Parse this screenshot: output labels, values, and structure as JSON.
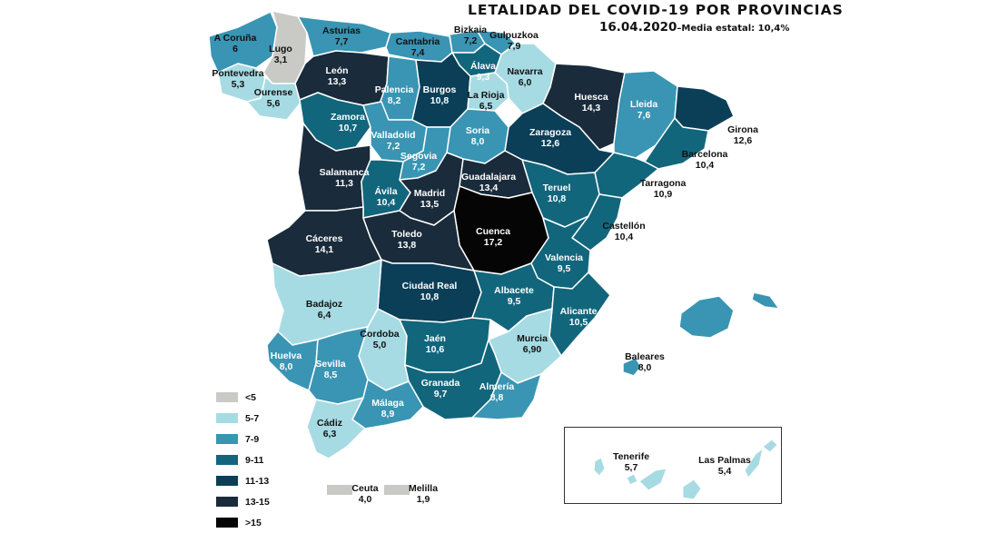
{
  "header": {
    "title": "LETALIDAD DEL COVID-19 POR PROVINCIAS",
    "date": "16.04.2020",
    "average": "–Media estatal: 10,4%"
  },
  "colors": {
    "lt5": "#c9c9c6",
    "c5_7": "#a7dbe3",
    "c7_9": "#3995b3",
    "c9_11": "#12667c",
    "c11_13": "#0b3f58",
    "c13_15": "#1a2b3b",
    "gt15": "#050505"
  },
  "legend": [
    {
      "label": "<5",
      "color": "#c9c9c6"
    },
    {
      "label": "5-7",
      "color": "#a7dbe3"
    },
    {
      "label": "7-9",
      "color": "#3995b3"
    },
    {
      "label": "9-11",
      "color": "#12667c"
    },
    {
      "label": "11-13",
      "color": "#0b3f58"
    },
    {
      "label": "13-15",
      "color": "#1a2b3b"
    },
    {
      "label": ">15",
      "color": "#050505"
    }
  ],
  "provinces": {
    "a_coruna": {
      "name": "A Coruña",
      "value": "6"
    },
    "lugo": {
      "name": "Lugo",
      "value": "3,1"
    },
    "pontevedra": {
      "name": "Pontevedra",
      "value": "5,3"
    },
    "ourense": {
      "name": "Ourense",
      "value": "5,6"
    },
    "asturias": {
      "name": "Asturias",
      "value": "7,7"
    },
    "cantabria": {
      "name": "Cantabria",
      "value": "7,4"
    },
    "bizkaia": {
      "name": "Bizkaia",
      "value": "7,2"
    },
    "gipuzkoa": {
      "name": "Gulpuzkoa",
      "value": "7,9"
    },
    "alava": {
      "name": "Álava",
      "value": "9,3"
    },
    "navarra": {
      "name": "Navarra",
      "value": "6,0"
    },
    "leon": {
      "name": "León",
      "value": "13,3"
    },
    "palencia": {
      "name": "Palencia",
      "value": "8,2"
    },
    "burgos": {
      "name": "Burgos",
      "value": "10,8"
    },
    "la_rioja": {
      "name": "La Rioja",
      "value": "6,5"
    },
    "huesca": {
      "name": "Huesca",
      "value": "14,3"
    },
    "lleida": {
      "name": "Lleida",
      "value": "7,6"
    },
    "girona": {
      "name": "Girona",
      "value": "12,6"
    },
    "barcelona": {
      "name": "Barcelona",
      "value": "10,4"
    },
    "tarragona": {
      "name": "Tarragona",
      "value": "10,9"
    },
    "zamora": {
      "name": "Zamora",
      "value": "10,7"
    },
    "valladolid": {
      "name": "Valladolid",
      "value": "7,2"
    },
    "soria": {
      "name": "Soria",
      "value": "8,0"
    },
    "zaragoza": {
      "name": "Zaragoza",
      "value": "12,6"
    },
    "segovia": {
      "name": "Segovia",
      "value": "7,2"
    },
    "salamanca": {
      "name": "Salamanca",
      "value": "11,3"
    },
    "avila": {
      "name": "Ávila",
      "value": "10,4"
    },
    "madrid": {
      "name": "Madrid",
      "value": "13,5"
    },
    "guadalajara": {
      "name": "Guadalajara",
      "value": "13,4"
    },
    "teruel": {
      "name": "Teruel",
      "value": "10,8"
    },
    "castellon": {
      "name": "Castellón",
      "value": "10,4"
    },
    "caceres": {
      "name": "Cáceres",
      "value": "14,1"
    },
    "toledo": {
      "name": "Toledo",
      "value": "13,8"
    },
    "cuenca": {
      "name": "Cuenca",
      "value": "17,2"
    },
    "valencia": {
      "name": "Valencia",
      "value": "9,5"
    },
    "badajoz": {
      "name": "Badajoz",
      "value": "6,4"
    },
    "ciudad_real": {
      "name": "Ciudad Real",
      "value": "10,8"
    },
    "albacete": {
      "name": "Albacete",
      "value": "9,5"
    },
    "alicante": {
      "name": "Alicante",
      "value": "10,5"
    },
    "cordoba": {
      "name": "Cordoba",
      "value": "5,0"
    },
    "jaen": {
      "name": "Jaén",
      "value": "10,6"
    },
    "murcia": {
      "name": "Murcia",
      "value": "6,90"
    },
    "huelva": {
      "name": "Huelva",
      "value": "8,0"
    },
    "sevilla": {
      "name": "Sevilla",
      "value": "8,5"
    },
    "granada": {
      "name": "Granada",
      "value": "9,7"
    },
    "almeria": {
      "name": "Almería",
      "value": "8,8"
    },
    "malaga": {
      "name": "Málaga",
      "value": "8,9"
    },
    "cadiz": {
      "name": "Cádiz",
      "value": "6,3"
    },
    "baleares": {
      "name": "Baleares",
      "value": "8,0"
    },
    "tenerife": {
      "name": "Tenerife",
      "value": "5,7"
    },
    "las_palmas": {
      "name": "Las Palmas",
      "value": "5,4"
    },
    "ceuta": {
      "name": "Ceuta",
      "value": "4,0"
    },
    "melilla": {
      "name": "Melilla",
      "value": "1,9"
    }
  }
}
